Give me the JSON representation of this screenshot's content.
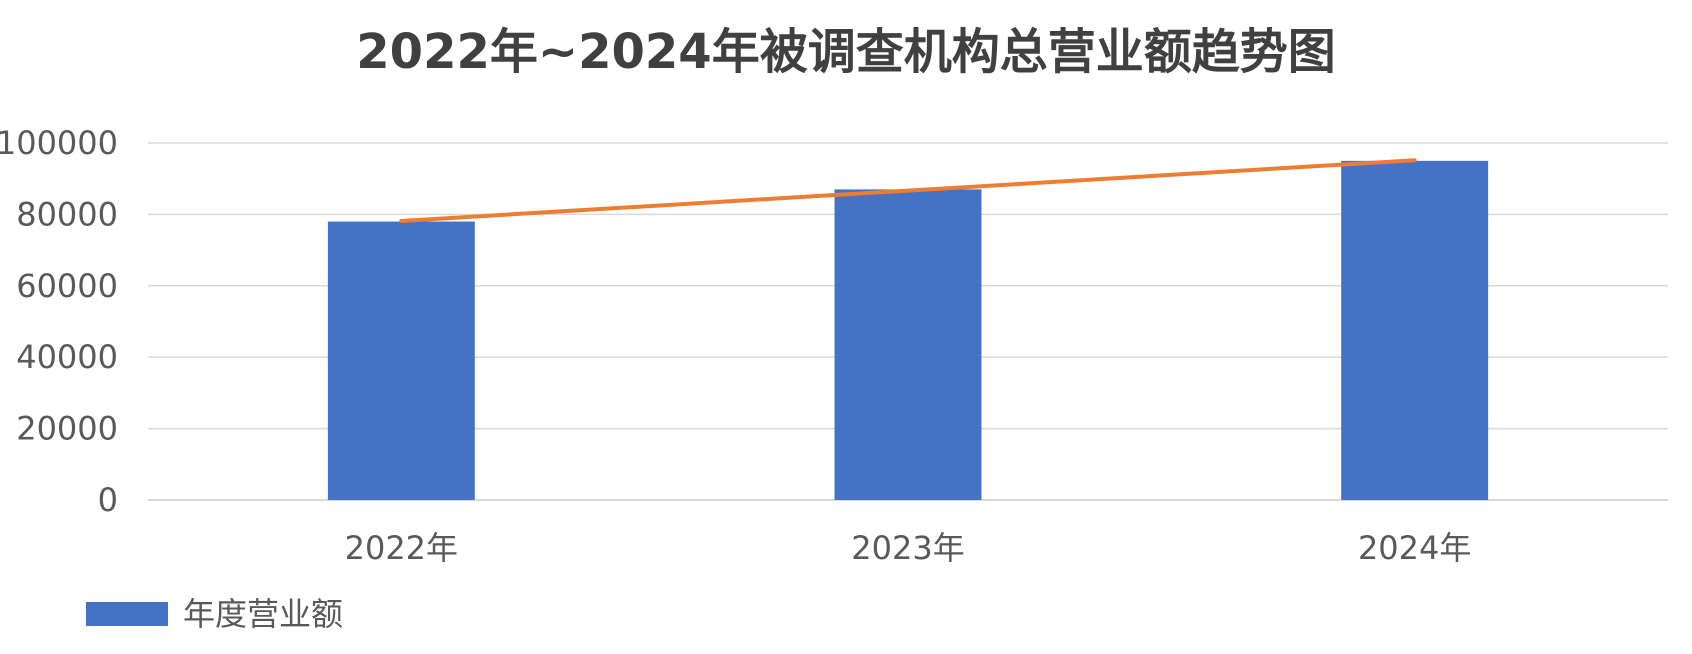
{
  "chart_data": {
    "type": "bar",
    "title": "2022年~2024年被调查机构总营业额趋势图",
    "categories": [
      "2022年",
      "2023年",
      "2024年"
    ],
    "series": [
      {
        "name": "年度营业额",
        "values": [
          78000,
          87000,
          95000
        ],
        "color": "#4472C4"
      }
    ],
    "trendline": {
      "type": "linear",
      "color": "#ED7D31"
    },
    "ylim": [
      0,
      100000
    ],
    "yticks": [
      "0",
      "20000",
      "40000",
      "60000",
      "80000",
      "100000"
    ],
    "xlabel": "",
    "ylabel": "",
    "grid": true,
    "legend_position": "bottom-left",
    "gridline_color": "#d9d9d9"
  }
}
